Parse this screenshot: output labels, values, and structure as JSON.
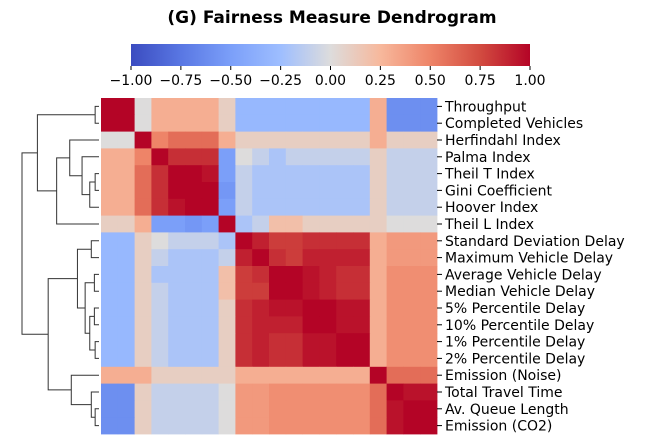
{
  "chart_data": {
    "type": "heatmap",
    "title": "(G) Fairness Measure Dendrogram",
    "colormap": "coolwarm",
    "colorbar": {
      "min": -1.0,
      "max": 1.0,
      "ticks": [
        -1.0,
        -0.75,
        -0.5,
        -0.25,
        0.0,
        0.25,
        0.5,
        0.75,
        1.0
      ],
      "tick_labels": [
        "−1.00",
        "−0.75",
        "−0.50",
        "−0.25",
        "0.00",
        "0.25",
        "0.50",
        "0.75",
        "1.00"
      ],
      "placement": "top"
    },
    "row_labels": [
      "Throughput",
      "Completed Vehicles",
      "Herfindahl Index",
      "Palma Index",
      "Theil T Index",
      "Gini Coefficient",
      "Hoover Index",
      "Theil L Index",
      "Standard Deviation Delay",
      "Maximum Vehicle Delay",
      "Average Vehicle Delay",
      "Median Vehicle Delay",
      "5% Percentile Delay",
      "10% Percentile Delay",
      "1% Percentile Delay",
      "2% Percentile Delay",
      "Emission (Noise)",
      "Total Travel Time",
      "Av. Queue Length",
      "Emission (CO2)"
    ],
    "dendrogram": "left",
    "matrix": [
      [
        1.0,
        1.0,
        0.0,
        0.3,
        0.3,
        0.3,
        0.3,
        0.1,
        -0.3,
        -0.3,
        -0.3,
        -0.3,
        -0.3,
        -0.3,
        -0.3,
        -0.3,
        0.3,
        -0.6,
        -0.6,
        -0.6
      ],
      [
        1.0,
        1.0,
        0.0,
        0.3,
        0.3,
        0.3,
        0.3,
        0.1,
        -0.3,
        -0.3,
        -0.3,
        -0.3,
        -0.3,
        -0.3,
        -0.3,
        -0.3,
        0.3,
        -0.6,
        -0.6,
        -0.6
      ],
      [
        0.0,
        0.0,
        1.0,
        0.5,
        0.6,
        0.6,
        0.6,
        0.3,
        0.1,
        0.1,
        0.1,
        0.1,
        0.1,
        0.1,
        0.1,
        0.1,
        0.3,
        0.1,
        0.1,
        0.1
      ],
      [
        0.3,
        0.3,
        0.5,
        1.0,
        0.85,
        0.85,
        0.85,
        -0.5,
        0.0,
        -0.1,
        -0.2,
        -0.1,
        -0.1,
        -0.1,
        -0.1,
        -0.1,
        0.1,
        -0.1,
        -0.1,
        -0.1
      ],
      [
        0.3,
        0.3,
        0.6,
        0.85,
        1.0,
        1.0,
        0.95,
        -0.5,
        -0.1,
        -0.2,
        -0.2,
        -0.2,
        -0.2,
        -0.2,
        -0.2,
        -0.2,
        0.1,
        -0.1,
        -0.1,
        -0.1
      ],
      [
        0.3,
        0.3,
        0.6,
        0.85,
        1.0,
        1.0,
        1.0,
        -0.55,
        -0.1,
        -0.2,
        -0.2,
        -0.2,
        -0.2,
        -0.2,
        -0.2,
        -0.2,
        0.1,
        -0.1,
        -0.1,
        -0.1
      ],
      [
        0.3,
        0.3,
        0.6,
        0.85,
        0.95,
        1.0,
        1.0,
        -0.5,
        -0.1,
        -0.2,
        -0.2,
        -0.2,
        -0.2,
        -0.2,
        -0.2,
        -0.2,
        0.1,
        -0.1,
        -0.1,
        -0.1
      ],
      [
        0.1,
        0.1,
        0.3,
        -0.5,
        -0.5,
        -0.55,
        -0.5,
        1.0,
        -0.2,
        -0.1,
        0.2,
        0.2,
        0.1,
        0.1,
        0.1,
        0.1,
        0.1,
        0.0,
        0.0,
        0.0
      ],
      [
        -0.3,
        -0.3,
        0.1,
        0.0,
        -0.1,
        -0.1,
        -0.1,
        -0.2,
        1.0,
        0.9,
        0.8,
        0.8,
        0.85,
        0.85,
        0.85,
        0.85,
        0.3,
        0.4,
        0.4,
        0.4
      ],
      [
        -0.3,
        -0.3,
        0.1,
        -0.1,
        -0.2,
        -0.2,
        -0.2,
        -0.1,
        0.9,
        1.0,
        0.85,
        0.8,
        0.9,
        0.9,
        0.9,
        0.9,
        0.3,
        0.4,
        0.4,
        0.4
      ],
      [
        -0.3,
        -0.3,
        0.1,
        -0.2,
        -0.2,
        -0.2,
        -0.2,
        0.2,
        0.8,
        0.85,
        1.0,
        1.0,
        0.95,
        0.9,
        0.85,
        0.85,
        0.3,
        0.45,
        0.45,
        0.45
      ],
      [
        -0.3,
        -0.3,
        0.1,
        -0.1,
        -0.2,
        -0.2,
        -0.2,
        0.2,
        0.8,
        0.8,
        1.0,
        1.0,
        0.95,
        0.9,
        0.85,
        0.85,
        0.3,
        0.45,
        0.45,
        0.45
      ],
      [
        -0.3,
        -0.3,
        0.1,
        -0.1,
        -0.2,
        -0.2,
        -0.2,
        0.1,
        0.85,
        0.9,
        0.95,
        0.95,
        1.0,
        1.0,
        0.95,
        0.95,
        0.3,
        0.45,
        0.45,
        0.45
      ],
      [
        -0.3,
        -0.3,
        0.1,
        -0.1,
        -0.2,
        -0.2,
        -0.2,
        0.1,
        0.85,
        0.9,
        0.9,
        0.9,
        1.0,
        1.0,
        0.95,
        0.95,
        0.3,
        0.45,
        0.45,
        0.45
      ],
      [
        -0.3,
        -0.3,
        0.1,
        -0.1,
        -0.2,
        -0.2,
        -0.2,
        0.1,
        0.85,
        0.9,
        0.85,
        0.85,
        0.95,
        0.95,
        1.0,
        1.0,
        0.3,
        0.45,
        0.45,
        0.45
      ],
      [
        -0.3,
        -0.3,
        0.1,
        -0.1,
        -0.2,
        -0.2,
        -0.2,
        0.1,
        0.85,
        0.9,
        0.85,
        0.85,
        0.95,
        0.95,
        1.0,
        1.0,
        0.3,
        0.45,
        0.45,
        0.45
      ],
      [
        0.3,
        0.3,
        0.3,
        0.1,
        0.1,
        0.1,
        0.1,
        0.1,
        0.3,
        0.3,
        0.3,
        0.3,
        0.3,
        0.3,
        0.3,
        0.3,
        1.0,
        0.6,
        0.6,
        0.6
      ],
      [
        -0.6,
        -0.6,
        0.1,
        -0.1,
        -0.1,
        -0.1,
        -0.1,
        0.0,
        0.4,
        0.4,
        0.45,
        0.45,
        0.45,
        0.45,
        0.45,
        0.45,
        0.6,
        1.0,
        0.95,
        0.95
      ],
      [
        -0.6,
        -0.6,
        0.1,
        -0.1,
        -0.1,
        -0.1,
        -0.1,
        0.0,
        0.4,
        0.4,
        0.45,
        0.45,
        0.45,
        0.45,
        0.45,
        0.45,
        0.6,
        0.95,
        1.0,
        1.0
      ],
      [
        -0.6,
        -0.6,
        0.1,
        -0.1,
        -0.1,
        -0.1,
        -0.1,
        0.0,
        0.4,
        0.4,
        0.45,
        0.45,
        0.45,
        0.45,
        0.45,
        0.45,
        0.6,
        0.95,
        1.0,
        1.0
      ]
    ]
  }
}
